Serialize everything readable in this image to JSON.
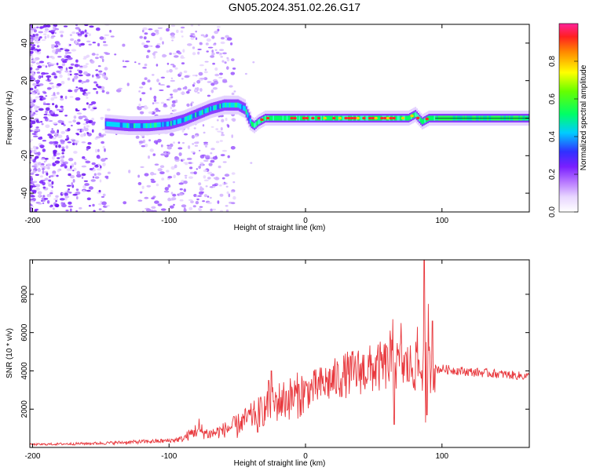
{
  "title": "GN05.2024.351.02.26.G17",
  "chart_data": [
    {
      "type": "heatmap",
      "xlabel": "Height of straight line (km)",
      "ylabel": "Frequency (Hz)",
      "xlim": [
        -202,
        164
      ],
      "ylim": [
        -50,
        50
      ],
      "xticks": [
        -200,
        -100,
        0,
        100
      ],
      "yticks": [
        -40,
        -20,
        0,
        20,
        40
      ],
      "grid": false,
      "ridge": {
        "x": [
          -147,
          -130,
          -115,
          -100,
          -90,
          -80,
          -70,
          -60,
          -50,
          -45,
          -42,
          -40,
          -38,
          -35,
          -30,
          -20,
          -10,
          0,
          20,
          40,
          60,
          75,
          80,
          85,
          90,
          100,
          120,
          140,
          160
        ],
        "y": [
          -3,
          -4,
          -4,
          -3,
          -1,
          2,
          5,
          7,
          7,
          5,
          0,
          -3,
          -4,
          -2,
          0,
          0,
          0,
          0,
          0,
          0,
          0,
          0,
          2,
          -2,
          0,
          0,
          0,
          0,
          0
        ]
      },
      "colorbar": {
        "label": "Normalized spectral amplitude",
        "range": [
          0,
          1
        ],
        "ticks": [
          "0.0",
          "0.2",
          "0.4",
          "0.6",
          "0.8"
        ],
        "tick_values": [
          0,
          0.2,
          0.4,
          0.6,
          0.8
        ]
      }
    },
    {
      "type": "line",
      "xlabel": "Height of straight line (km)",
      "ylabel": "SNR (10 * v/v)",
      "xlim": [
        -202,
        164
      ],
      "ylim": [
        0,
        9800
      ],
      "xticks": [
        -200,
        -100,
        0,
        100
      ],
      "yticks": [
        2000,
        4000,
        6000,
        8000
      ],
      "color": "#e8383d",
      "grid": false,
      "envelope": {
        "x": [
          -202,
          -150,
          -100,
          -90,
          -80,
          -70,
          -60,
          -50,
          -40,
          -30,
          -20,
          -10,
          0,
          10,
          20,
          30,
          40,
          50,
          60,
          70,
          75,
          80,
          85,
          88,
          90,
          95,
          100,
          120,
          140,
          164
        ],
        "y": [
          150,
          220,
          350,
          450,
          900,
          700,
          900,
          1200,
          1600,
          2000,
          2400,
          2600,
          2900,
          3200,
          3500,
          3800,
          4000,
          4100,
          4300,
          4300,
          4200,
          4200,
          4100,
          4300,
          4200,
          4100,
          4100,
          3950,
          3850,
          3700
        ]
      },
      "spikes": [
        {
          "x": -78,
          "y": 1500
        },
        {
          "x": -76,
          "y": 1200
        },
        {
          "x": -25,
          "y": 4000
        },
        {
          "x": -27,
          "y": 3500
        },
        {
          "x": -5,
          "y": 3300
        },
        {
          "x": 38,
          "y": 4500
        },
        {
          "x": 60,
          "y": 5200
        },
        {
          "x": 62,
          "y": 6100
        },
        {
          "x": 64,
          "y": 6700
        },
        {
          "x": 70,
          "y": 6500
        },
        {
          "x": 82,
          "y": 6300
        },
        {
          "x": 87,
          "y": 9800
        },
        {
          "x": 90,
          "y": 7500
        },
        {
          "x": 93,
          "y": 6600
        }
      ],
      "dips": [
        {
          "x": -50,
          "y": 500
        },
        {
          "x": -35,
          "y": 800
        },
        {
          "x": 65,
          "y": 1200
        },
        {
          "x": 88,
          "y": 1300
        },
        {
          "x": 89,
          "y": 1700
        }
      ]
    }
  ]
}
